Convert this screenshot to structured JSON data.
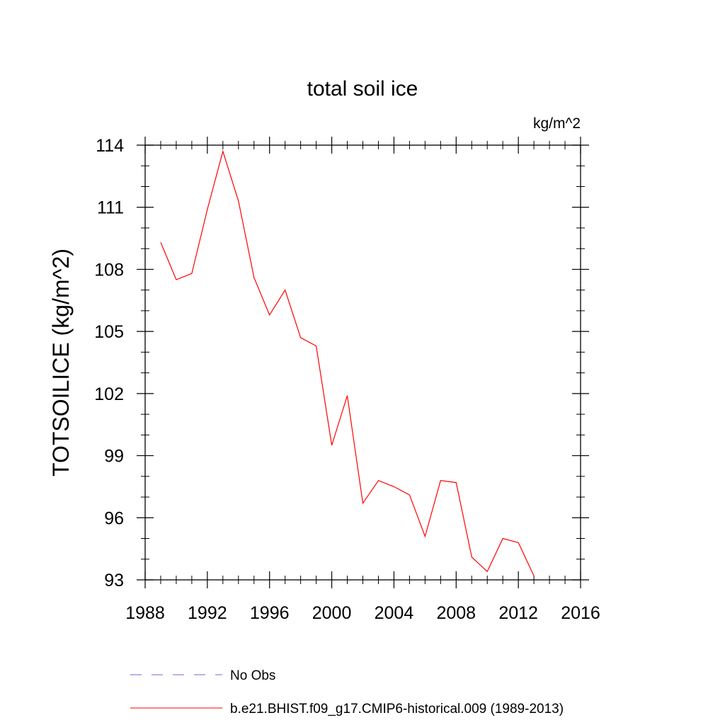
{
  "chart_data": {
    "type": "line",
    "title": "total soil ice",
    "units_label": "kg/m^2",
    "ylabel": "TOTSOILICE  (kg/m^2)",
    "xlabel": "",
    "xlim": [
      1988,
      2016
    ],
    "ylim": [
      93,
      114
    ],
    "x_ticks": [
      1988,
      1992,
      1996,
      2000,
      2004,
      2008,
      2012,
      2016
    ],
    "y_ticks": [
      93,
      96,
      99,
      102,
      105,
      108,
      111,
      114
    ],
    "grid": false,
    "legend_position": "bottom",
    "series": [
      {
        "name": "b.e21.BHIST.f09_g17.CMIP6-historical.009 (1989-2013)",
        "color": "#ff0000",
        "style": "solid",
        "x": [
          1989,
          1990,
          1991,
          1992,
          1993,
          1994,
          1995,
          1996,
          1997,
          1998,
          1999,
          2000,
          2001,
          2002,
          2003,
          2004,
          2005,
          2006,
          2007,
          2008,
          2009,
          2010,
          2011,
          2012,
          2013
        ],
        "y": [
          109.3,
          107.5,
          107.8,
          110.9,
          113.7,
          111.3,
          107.6,
          105.8,
          107.0,
          104.7,
          104.3,
          99.5,
          101.9,
          96.7,
          97.8,
          97.5,
          97.1,
          95.1,
          97.8,
          97.7,
          94.1,
          93.4,
          95.0,
          94.8,
          93.2
        ]
      }
    ],
    "legend": [
      {
        "label": "No Obs",
        "color": "#6a6adb",
        "style": "dashed"
      },
      {
        "label": "b.e21.BHIST.f09_g17.CMIP6-historical.009 (1989-2013)",
        "color": "#ff0000",
        "style": "solid"
      }
    ]
  }
}
